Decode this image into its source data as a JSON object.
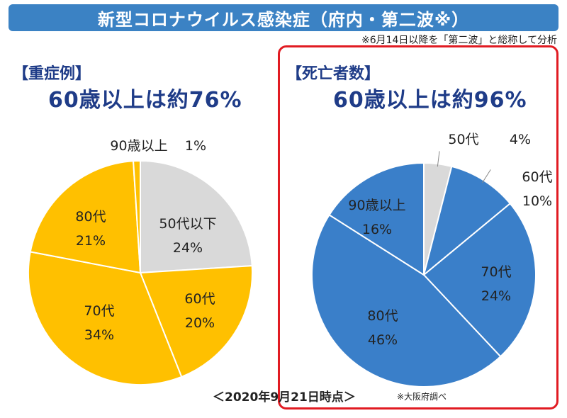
{
  "header": {
    "title": "新型コロナウイルス感染症（府内・第二波※）",
    "note": "※6月14日以降を「第二波」と総称して分析"
  },
  "footer": {
    "date": "＜2020年9月21日時点＞",
    "source": "※大阪府調べ"
  },
  "colors": {
    "title_bg": "#3b82c4",
    "heading": "#1f3c88",
    "frame": "#e11b22",
    "gray_slice": "#d9d9d9",
    "yellow_slice": "#ffc000",
    "blue_slice": "#3a7fc9"
  },
  "chart_data": [
    {
      "type": "pie",
      "label": "【重症例】",
      "headline": "60歳以上は約76%",
      "slices": [
        {
          "name": "50代以下",
          "value": 24,
          "value_label": "24%",
          "color": "#d9d9d9"
        },
        {
          "name": "60代",
          "value": 20,
          "value_label": "20%",
          "color": "#ffc000"
        },
        {
          "name": "70代",
          "value": 34,
          "value_label": "34%",
          "color": "#ffc000"
        },
        {
          "name": "80代",
          "value": 21,
          "value_label": "21%",
          "color": "#ffc000"
        },
        {
          "name": "90歳以上",
          "value": 1,
          "value_label": "1%",
          "color": "#ffc000"
        }
      ]
    },
    {
      "type": "pie",
      "label": "【死亡者数】",
      "headline": "60歳以上は約96%",
      "slices": [
        {
          "name": "50代",
          "value": 4,
          "value_label": "4%",
          "color": "#d9d9d9"
        },
        {
          "name": "60代",
          "value": 10,
          "value_label": "10%",
          "color": "#3a7fc9"
        },
        {
          "name": "70代",
          "value": 24,
          "value_label": "24%",
          "color": "#3a7fc9"
        },
        {
          "name": "80代",
          "value": 46,
          "value_label": "46%",
          "color": "#3a7fc9"
        },
        {
          "name": "90歳以上",
          "value": 16,
          "value_label": "16%",
          "color": "#3a7fc9"
        }
      ]
    }
  ]
}
